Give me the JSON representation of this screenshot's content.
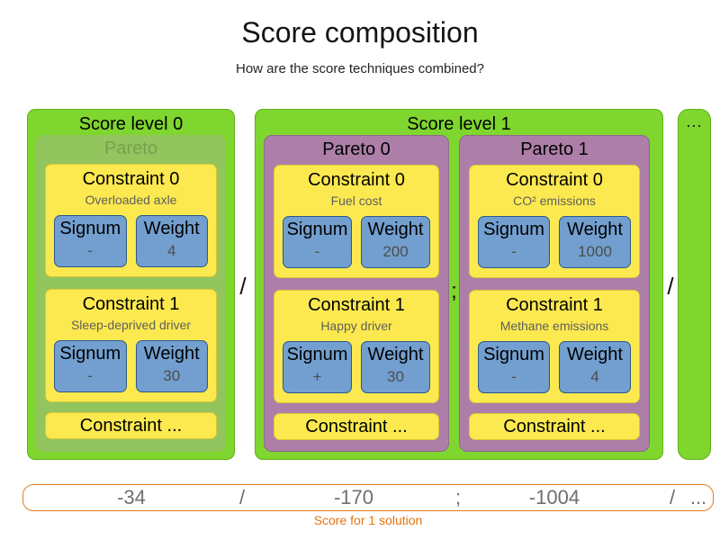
{
  "header": {
    "title": "Score composition",
    "subtitle": "How are the score techniques combined?"
  },
  "labels": {
    "signum": "Signum",
    "weight": "Weight",
    "constraint_more": "Constraint ...",
    "ellipsis": "...",
    "slash": "/",
    "semicolon": ";"
  },
  "levels": [
    {
      "title": "Score level 0",
      "paretos": [
        {
          "label": "Pareto",
          "constraints": [
            {
              "title": "Constraint 0",
              "subtitle": "Overloaded axle",
              "signum": "-",
              "weight": "4"
            },
            {
              "title": "Constraint 1",
              "subtitle": "Sleep-deprived driver",
              "signum": "-",
              "weight": "30"
            }
          ]
        }
      ]
    },
    {
      "title": "Score level 1",
      "paretos": [
        {
          "label": "Pareto 0",
          "constraints": [
            {
              "title": "Constraint 0",
              "subtitle": "Fuel cost",
              "signum": "-",
              "weight": "200"
            },
            {
              "title": "Constraint 1",
              "subtitle": "Happy driver",
              "signum": "+",
              "weight": "30"
            }
          ]
        },
        {
          "label": "Pareto 1",
          "constraints": [
            {
              "title": "Constraint 0",
              "subtitle": "CO² emissions",
              "signum": "-",
              "weight": "1000"
            },
            {
              "title": "Constraint 1",
              "subtitle": "Methane emissions",
              "signum": "-",
              "weight": "4"
            }
          ]
        }
      ]
    }
  ],
  "score_bar": {
    "values": [
      "-34",
      "/",
      "-170",
      ";",
      "-1004",
      "/",
      "..."
    ],
    "caption": "Score for 1 solution"
  },
  "colors": {
    "level_green": "#7fd62e",
    "pareto_soft_green": "#92c55e",
    "pareto_purple": "#ad7fa8",
    "constraint_yellow": "#fce94f",
    "signum_weight_blue": "#729fcf",
    "score_bar_orange": "#e8730c"
  }
}
